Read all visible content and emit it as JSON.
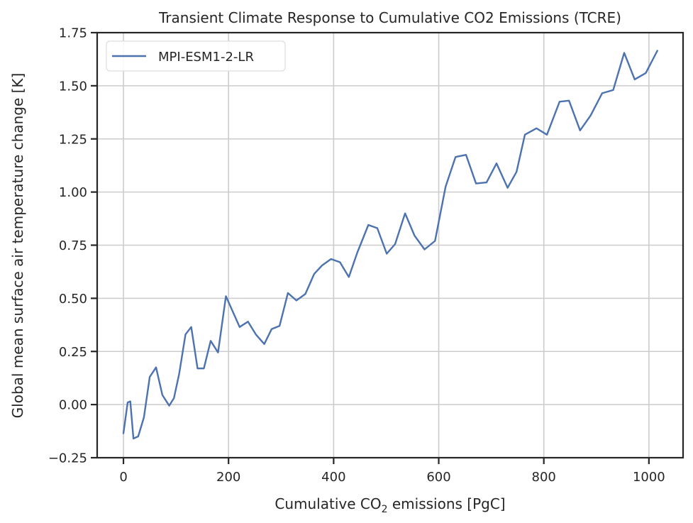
{
  "chart_data": {
    "type": "line",
    "title": "Transient Climate Response to Cumulative CO2 Emissions (TCRE)",
    "xlabel_pre": "Cumulative CO",
    "xlabel_sub": "2",
    "xlabel_post": " emissions [PgC]",
    "ylabel": "Global mean surface air temperature change [K]",
    "xlim": [
      -50,
      1065
    ],
    "ylim": [
      -0.25,
      1.75
    ],
    "xticks": [
      0,
      200,
      400,
      600,
      800,
      1000
    ],
    "xtick_labels": [
      "0",
      "200",
      "400",
      "600",
      "800",
      "1000"
    ],
    "yticks": [
      -0.25,
      0.0,
      0.25,
      0.5,
      0.75,
      1.0,
      1.25,
      1.5,
      1.75
    ],
    "ytick_labels": [
      "−0.25",
      "0.00",
      "0.25",
      "0.50",
      "0.75",
      "1.00",
      "1.25",
      "1.50",
      "1.75"
    ],
    "grid": true,
    "legend_position": "top-left",
    "series": [
      {
        "name": "MPI-ESM1-2-LR",
        "color": "#4c72b0",
        "x": [
          0,
          8,
          13,
          19,
          28,
          39,
          50,
          62,
          74,
          87,
          96,
          106,
          118,
          129,
          141,
          153,
          166,
          180,
          195,
          221,
          237,
          252,
          268,
          282,
          297,
          313,
          329,
          346,
          363,
          378,
          395,
          412,
          429,
          445,
          466,
          483,
          501,
          517,
          536,
          554,
          573,
          593,
          613,
          632,
          652,
          671,
          691,
          710,
          731,
          748,
          764,
          786,
          806,
          830,
          848,
          869,
          889,
          911,
          932,
          953,
          973,
          994,
          1016
        ],
        "y": [
          -0.135,
          0.01,
          0.015,
          -0.16,
          -0.15,
          -0.06,
          0.13,
          0.175,
          0.045,
          -0.005,
          0.03,
          0.145,
          0.33,
          0.365,
          0.17,
          0.17,
          0.3,
          0.245,
          0.51,
          0.365,
          0.39,
          0.33,
          0.285,
          0.355,
          0.37,
          0.525,
          0.49,
          0.52,
          0.615,
          0.655,
          0.685,
          0.67,
          0.6,
          0.715,
          0.845,
          0.83,
          0.71,
          0.755,
          0.9,
          0.795,
          0.73,
          0.77,
          1.025,
          1.165,
          1.175,
          1.04,
          1.045,
          1.135,
          1.02,
          1.095,
          1.27,
          1.3,
          1.27,
          1.425,
          1.43,
          1.29,
          1.36,
          1.465,
          1.48,
          1.655,
          1.53,
          1.56,
          1.665
        ]
      }
    ]
  }
}
